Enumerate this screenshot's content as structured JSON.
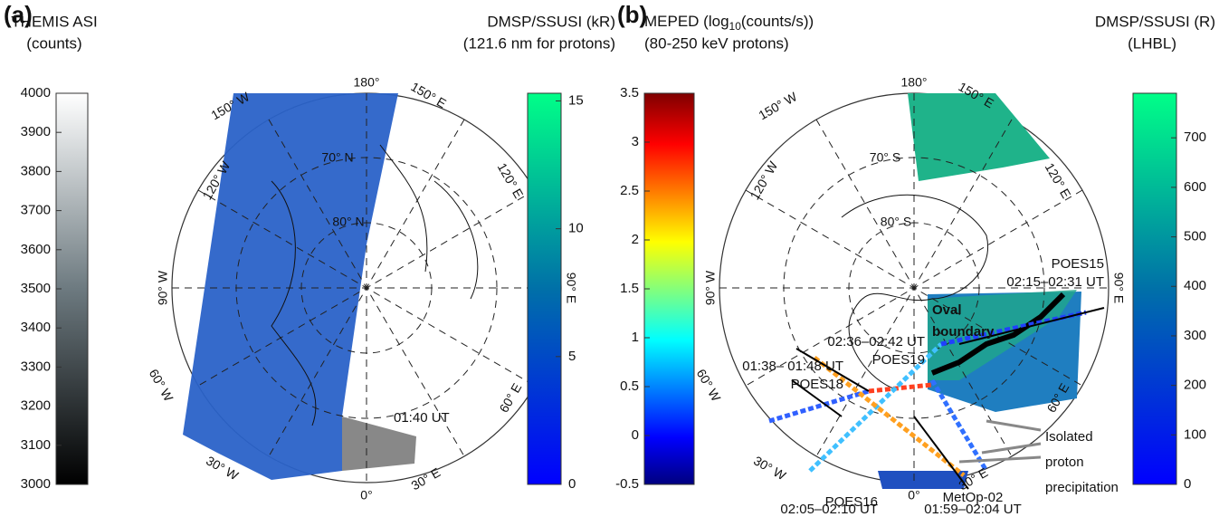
{
  "panels": [
    {
      "label": "(a)",
      "left_colorbar": {
        "title": [
          "THEMIS ASI",
          "(counts)"
        ],
        "lim": [
          3000,
          4000
        ],
        "ticks": [
          3000,
          3100,
          3200,
          3300,
          3400,
          3500,
          3600,
          3700,
          3800,
          3900,
          4000
        ]
      },
      "right_colorbar": {
        "title": [
          "DMSP/SSUSI (kR)",
          "(121.6 nm for protons)"
        ],
        "lim": [
          0,
          15.3
        ],
        "ticks": [
          0,
          5,
          10,
          15
        ]
      },
      "map_labels": [
        "180°",
        "150° E",
        "120° E",
        "90° E",
        "60° E",
        "30° E",
        "0°",
        "30° W",
        "60° W",
        "90° W",
        "120° W",
        "150° W",
        "70° N",
        "80° N"
      ],
      "annotations": [
        "01:40 UT"
      ]
    },
    {
      "label": "(b)",
      "left_colorbar": {
        "title": [
          "MEPED (log",
          "10",
          "(counts/s))",
          "(80-250 keV protons)"
        ],
        "lim": [
          -0.5,
          3.5
        ],
        "ticks": [
          -0.5,
          0,
          0.5,
          1,
          1.5,
          2,
          2.5,
          3,
          3.5
        ]
      },
      "right_colorbar": {
        "title": [
          "DMSP/SSUSI (R)",
          "(LHBL)"
        ],
        "lim": [
          0,
          790
        ],
        "ticks": [
          0,
          100,
          200,
          300,
          400,
          500,
          600,
          700
        ]
      },
      "map_labels": [
        "180°",
        "150° E",
        "120° E",
        "90° E",
        "60° E",
        "30° E",
        "0°",
        "30° W",
        "60° W",
        "90° W",
        "120° W",
        "150° W",
        "70° S",
        "80° S"
      ],
      "annotations": [
        "POES15",
        "02:15–02:31 UT",
        "Oval",
        "boundary",
        "02:36–02:42 UT",
        "POES19",
        "01:38– 01:48 UT",
        "POES18",
        "POES16",
        "02:05–02:10 UT",
        "MetOp-02",
        "01:59–02:04 UT",
        "Isolated",
        "proton",
        "precipitation"
      ]
    }
  ]
}
